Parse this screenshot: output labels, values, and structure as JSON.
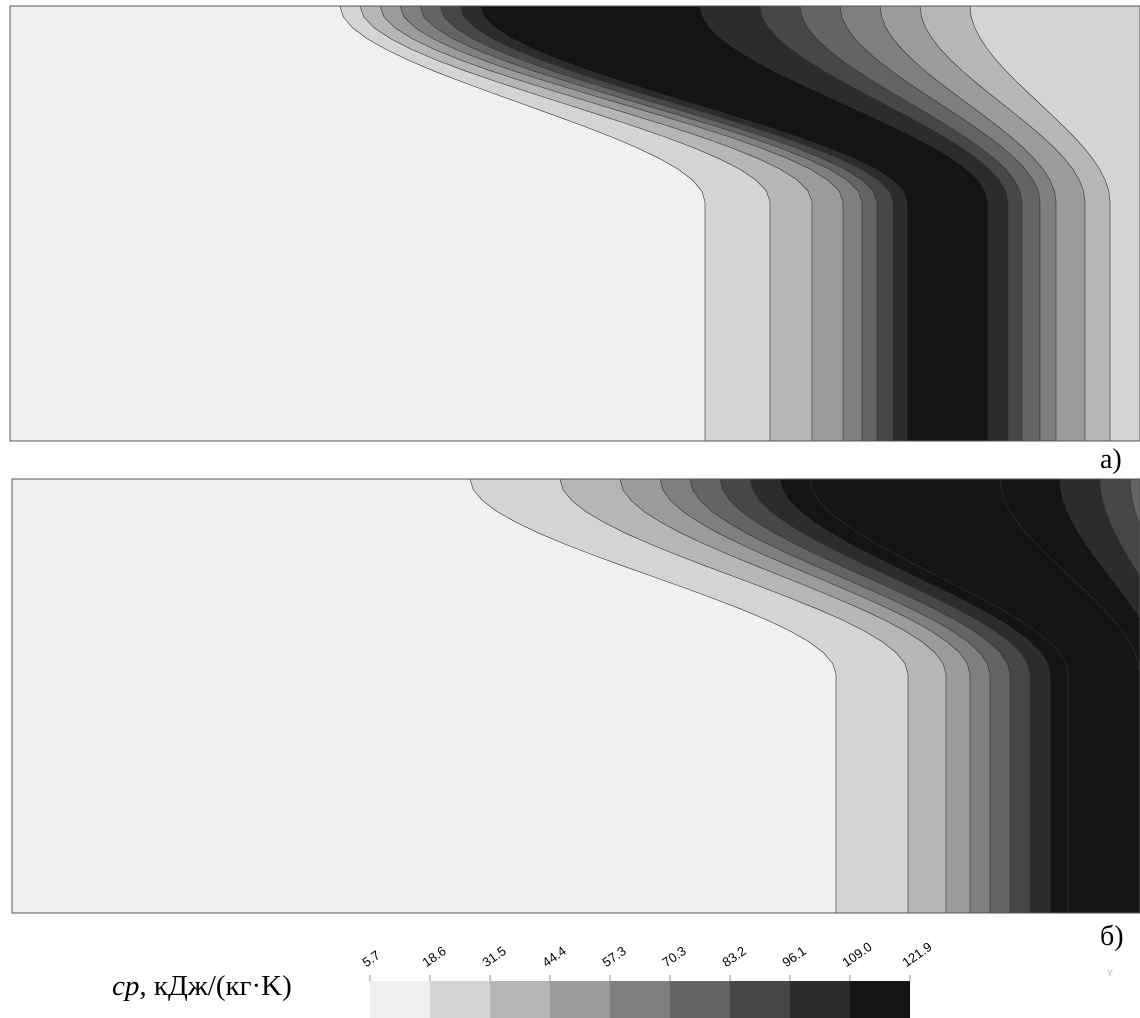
{
  "chart_data": [
    {
      "type": "heatmap",
      "panel": "a)",
      "levels": [
        5.7,
        18.6,
        31.5,
        44.4,
        57.3,
        70.3,
        83.2,
        96.1,
        109.0,
        121.9
      ],
      "level_colors": [
        "#f0f0f0",
        "#d4d4d4",
        "#b6b6b6",
        "#9b9b9b",
        "#7f7f7f",
        "#646464",
        "#474747",
        "#2c2c2c",
        "#141414"
      ]
    },
    {
      "type": "heatmap",
      "panel": "б)",
      "levels": [
        5.7,
        18.6,
        31.5,
        44.4,
        57.3,
        70.3,
        83.2,
        96.1,
        109.0,
        121.9
      ],
      "level_colors": [
        "#f0f0f0",
        "#d4d4d4",
        "#b6b6b6",
        "#9b9b9b",
        "#7f7f7f",
        "#646464",
        "#474747",
        "#2c2c2c",
        "#141414"
      ]
    }
  ],
  "labels": {
    "panel_a": "а)",
    "panel_b": "б)"
  },
  "legend": {
    "symbol": "cp",
    "unit": ", кДж/(кг·K)",
    "ticks": [
      "5.7",
      "18.6",
      "31.5",
      "44.4",
      "57.3",
      "70.3",
      "83.2",
      "96.1",
      "109.0",
      "121.9"
    ]
  },
  "axis_marker": "Y"
}
